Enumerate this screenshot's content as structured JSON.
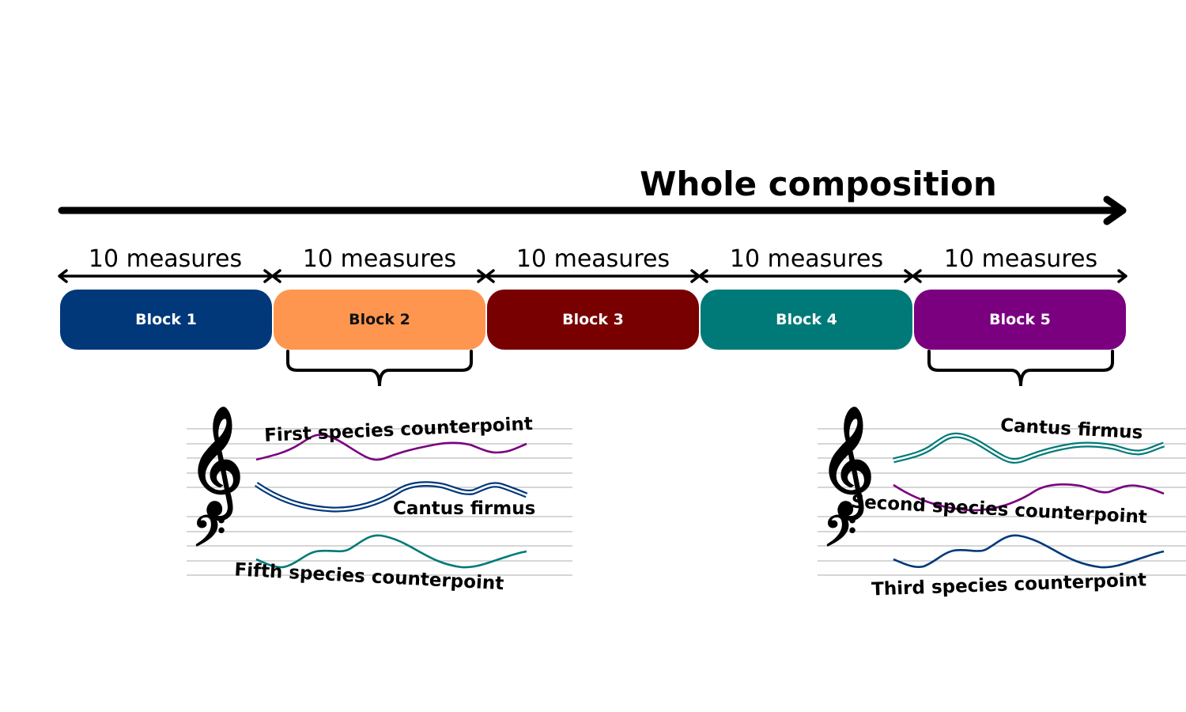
{
  "title": "Whole composition",
  "measure_label": "10 measures",
  "blocks": [
    {
      "label": "Block 1",
      "color": "#00387a",
      "text_color": "#ffffff"
    },
    {
      "label": "Block 2",
      "color": "#ff9650",
      "text_color": "#111111"
    },
    {
      "label": "Block 3",
      "color": "#780000",
      "text_color": "#ffffff"
    },
    {
      "label": "Block 4",
      "color": "#007a78",
      "text_color": "#ffffff"
    },
    {
      "label": "Block 5",
      "color": "#7a0080",
      "text_color": "#ffffff"
    }
  ],
  "detail_left": {
    "for_block": "Block 2",
    "labels": {
      "top": "First species counterpoint",
      "middle": "Cantus firmus",
      "bottom": "Fifth species counterpoint"
    }
  },
  "detail_right": {
    "for_block": "Block 5",
    "labels": {
      "top": "Cantus firmus",
      "middle": "Second species counterpoint",
      "bottom": "Third species counterpoint"
    }
  },
  "colors": {
    "purple": "#7a0080",
    "navy": "#00387a",
    "teal": "#007a78",
    "staff": "#bdbdbd"
  }
}
